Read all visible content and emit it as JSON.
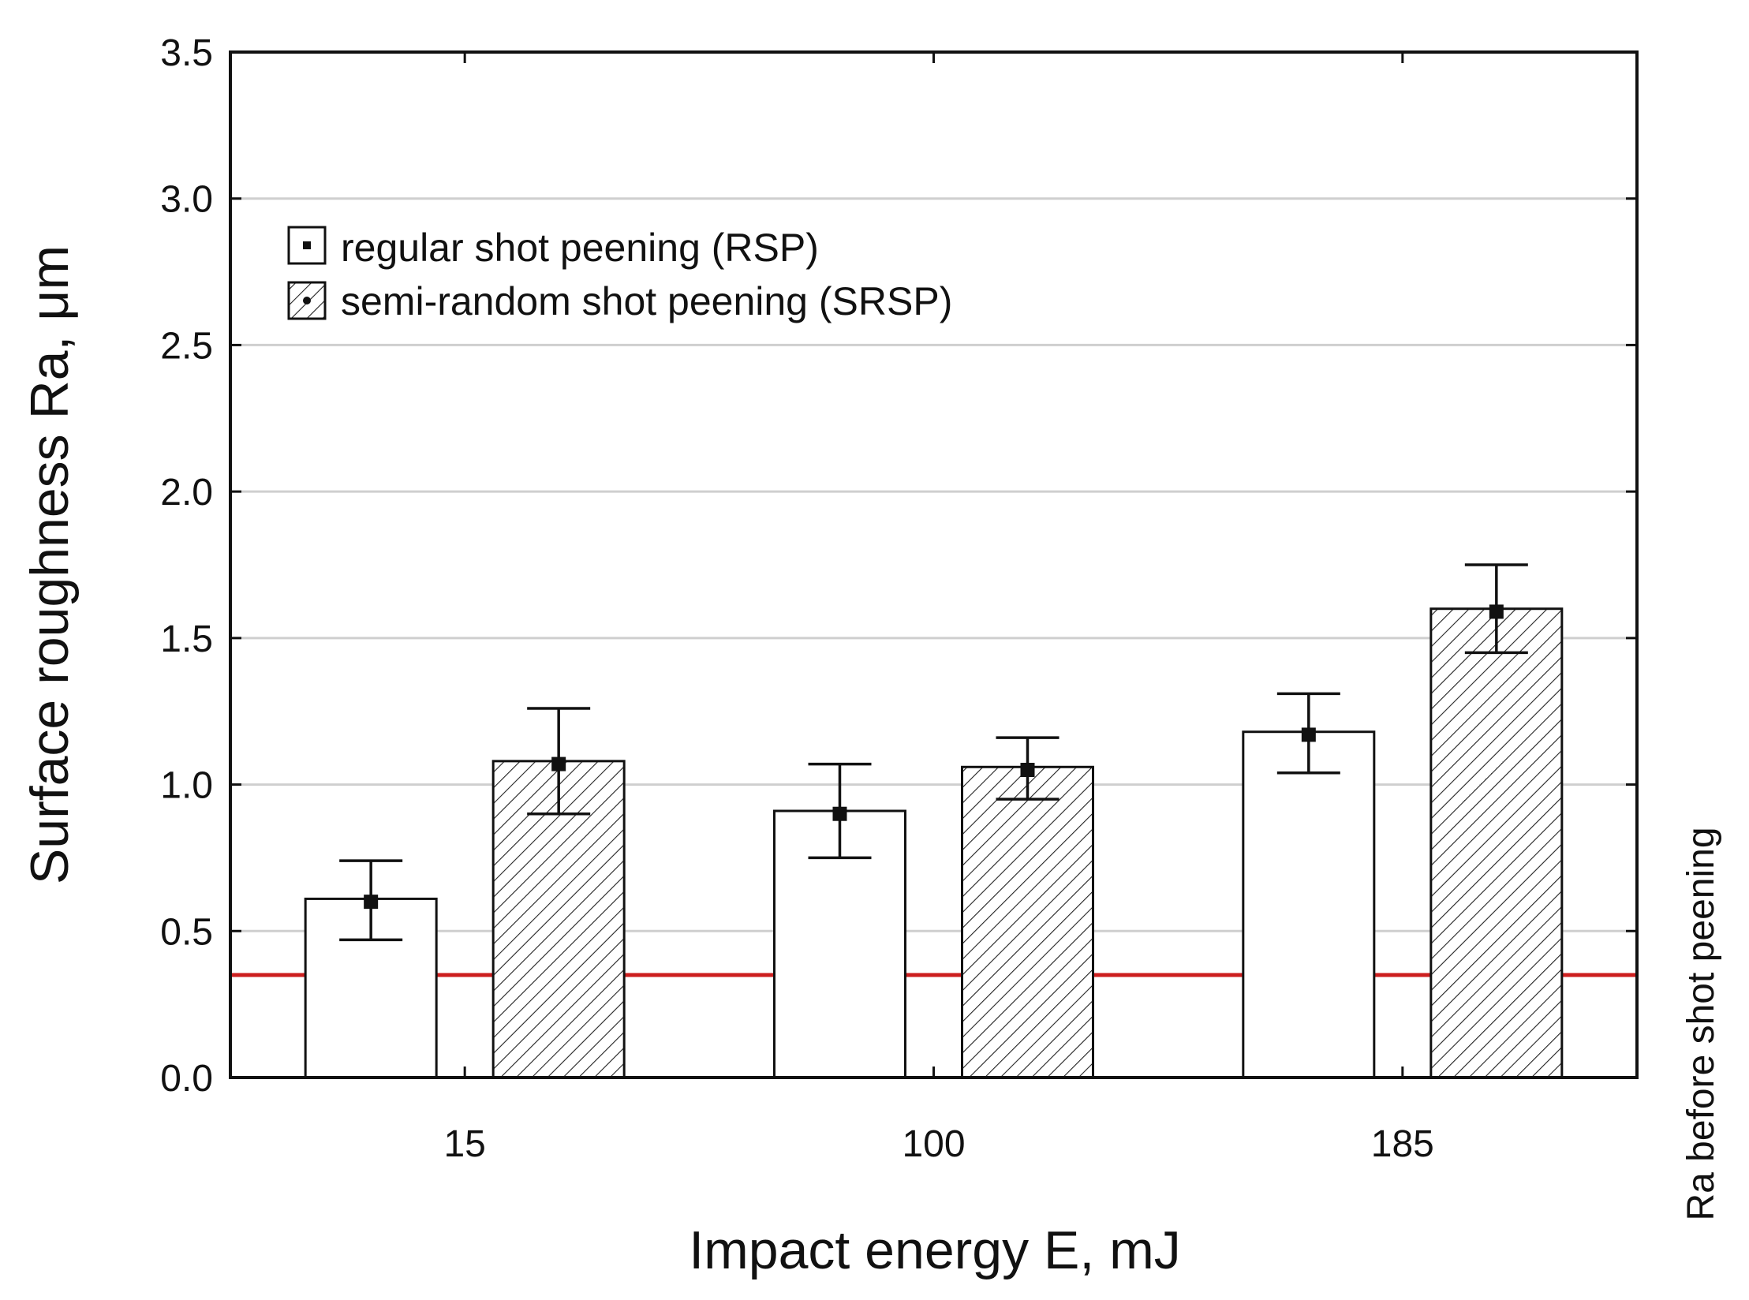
{
  "chart_data": {
    "type": "bar",
    "title": "",
    "xlabel": "Impact energy E, mJ",
    "ylabel": "Surface roughness Ra, μm",
    "categories": [
      "15",
      "100",
      "185"
    ],
    "ylim": [
      0,
      3.5
    ],
    "yticks": [
      "0.0",
      "0.5",
      "1.0",
      "1.5",
      "2.0",
      "2.5",
      "3.0",
      "3.5"
    ],
    "grid": true,
    "legend_position": "top-left",
    "series": [
      {
        "name": "regular shot peening (RSP)",
        "pattern": "none",
        "values": [
          0.61,
          0.91,
          1.18
        ],
        "means": [
          0.6,
          0.9,
          1.17
        ],
        "err_low": [
          0.47,
          0.75,
          1.04
        ],
        "err_high": [
          0.74,
          1.07,
          1.31
        ]
      },
      {
        "name": "semi-random shot peening (SRSP)",
        "pattern": "hatched",
        "values": [
          1.08,
          1.06,
          1.6
        ],
        "means": [
          1.07,
          1.05,
          1.59
        ],
        "err_low": [
          0.9,
          0.95,
          1.45
        ],
        "err_high": [
          1.26,
          1.16,
          1.75
        ]
      }
    ],
    "reference_line": {
      "value": 0.35,
      "label": "Ra before shot peening",
      "color": "#cc1f1f"
    }
  }
}
